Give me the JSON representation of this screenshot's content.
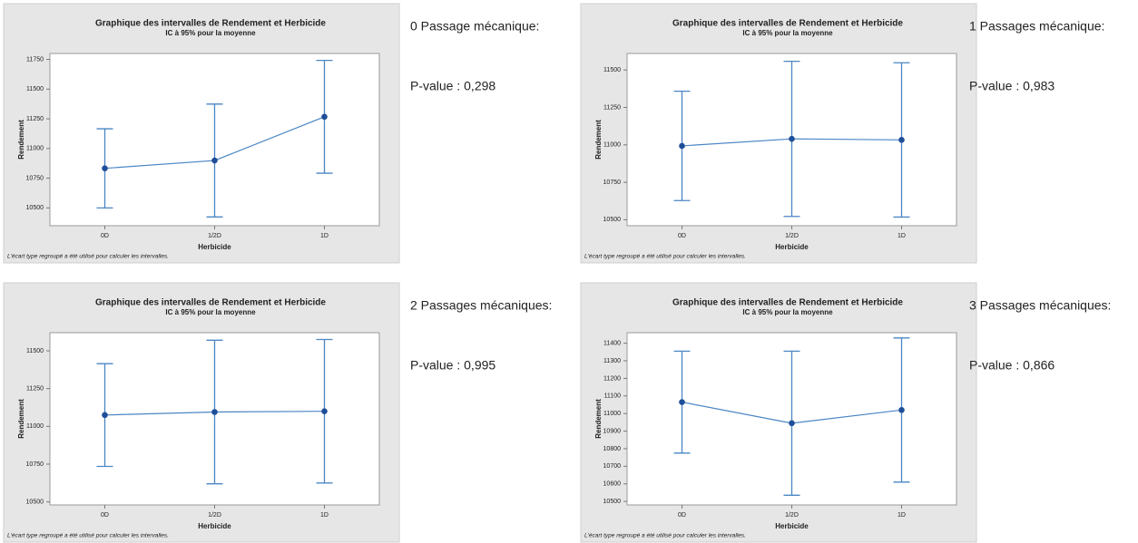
{
  "chart_data": [
    {
      "type": "errorbar",
      "title": "Graphique des intervalles de Rendement et Herbicide",
      "subtitle": "IC à 95% pour la moyenne",
      "xlabel": "Herbicide",
      "ylabel": "Rendement",
      "footnote": "L'écart type regroupé a été utilisé pour calculer les intervalles.",
      "categories": [
        "0D",
        "1/2D",
        "1D"
      ],
      "values": [
        10833,
        10899,
        11267
      ],
      "errors": [
        333,
        475,
        475
      ],
      "color": "#4a86c5",
      "point_color": "#1f4e99",
      "ylim": [
        10350,
        11800
      ],
      "yticks": [
        10500,
        10750,
        11000,
        11250,
        11500,
        11750
      ]
    },
    {
      "type": "errorbar",
      "title": "Graphique des intervalles de Rendement et Herbicide",
      "subtitle": "IC à 95% pour la moyenne",
      "xlabel": "Herbicide",
      "ylabel": "Rendement",
      "footnote": "L'écart type regroupé a été utilisé pour calculer les intervalles.",
      "categories": [
        "0D",
        "1/2D",
        "1D"
      ],
      "values": [
        10993,
        11040,
        11033
      ],
      "errors": [
        365,
        518,
        515
      ],
      "color": "#4a86c5",
      "point_color": "#1f4e99",
      "ylim": [
        10460,
        11610
      ],
      "yticks": [
        10500,
        10750,
        11000,
        11250,
        11500
      ]
    },
    {
      "type": "errorbar",
      "title": "Graphique des intervalles de Rendement et Herbicide",
      "subtitle": "IC à 95% pour la moyenne",
      "xlabel": "Herbicide",
      "ylabel": "Rendement",
      "footnote": "L'écart type regroupé a été utilisé pour calculer les intervalles.",
      "categories": [
        "0D",
        "1/2D",
        "1D"
      ],
      "values": [
        11075,
        11095,
        11100
      ],
      "errors": [
        340,
        475,
        475
      ],
      "color": "#4a86c5",
      "point_color": "#1f4e99",
      "ylim": [
        10480,
        11620
      ],
      "yticks": [
        10500,
        10750,
        11000,
        11250,
        11500
      ]
    },
    {
      "type": "errorbar",
      "title": "Graphique des intervalles de Rendement et Herbicide",
      "subtitle": "IC à 95% pour la moyenne",
      "xlabel": "Herbicide",
      "ylabel": "Rendement",
      "footnote": "L'écart type regroupé a été utilisé pour calculer les intervalles.",
      "categories": [
        "0D",
        "1/2D",
        "1D"
      ],
      "values": [
        11065,
        10945,
        11020
      ],
      "errors": [
        290,
        410,
        410
      ],
      "color": "#4a86c5",
      "point_color": "#1f4e99",
      "ylim": [
        10480,
        11460
      ],
      "yticks": [
        10500,
        10600,
        10700,
        10800,
        10900,
        11000,
        11100,
        11200,
        11300,
        11400
      ]
    }
  ],
  "notes": [
    {
      "heading": "0 Passage mécanique:",
      "pvalue": "P-value : 0,298"
    },
    {
      "heading": "1 Passages mécanique:",
      "pvalue": "P-value : 0,983"
    },
    {
      "heading": "2 Passages mécaniques:",
      "pvalue": "P-value : 0,995"
    },
    {
      "heading": "3 Passages mécaniques:",
      "pvalue": "P-value : 0,866"
    }
  ]
}
